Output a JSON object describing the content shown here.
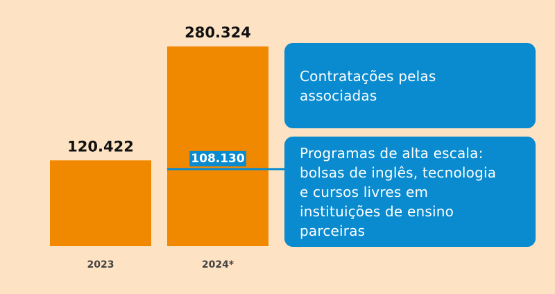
{
  "colors": {
    "background": "#fde2c3",
    "bar": "#f08800",
    "accent": "#0a8bcf",
    "text": "#111111",
    "axis_text": "#444444"
  },
  "chart_data": {
    "type": "bar",
    "categories": [
      "2023",
      "2024*"
    ],
    "values": [
      120422,
      280324
    ],
    "value_labels": [
      "120.422",
      "280.324"
    ],
    "ylim": [
      0,
      280324
    ],
    "title": "",
    "xlabel": "",
    "ylabel": "",
    "grid": false,
    "annotations": [
      {
        "category": "2024*",
        "value": 108130,
        "label": "108.130",
        "below_text": "Programas de alta escala: bolsas de inglês, tecnologia e cursos livres em instituições de ensino parceiras",
        "above_text": "Contratações pelas associadas"
      }
    ]
  },
  "legend": {
    "upper": {
      "lines": [
        "Contratações pelas",
        "associadas"
      ]
    },
    "lower": {
      "lines": [
        "Programas de alta escala:",
        "bolsas de inglês, tecnologia",
        "e cursos livres em",
        "instituições de ensino",
        "parceiras"
      ]
    }
  }
}
